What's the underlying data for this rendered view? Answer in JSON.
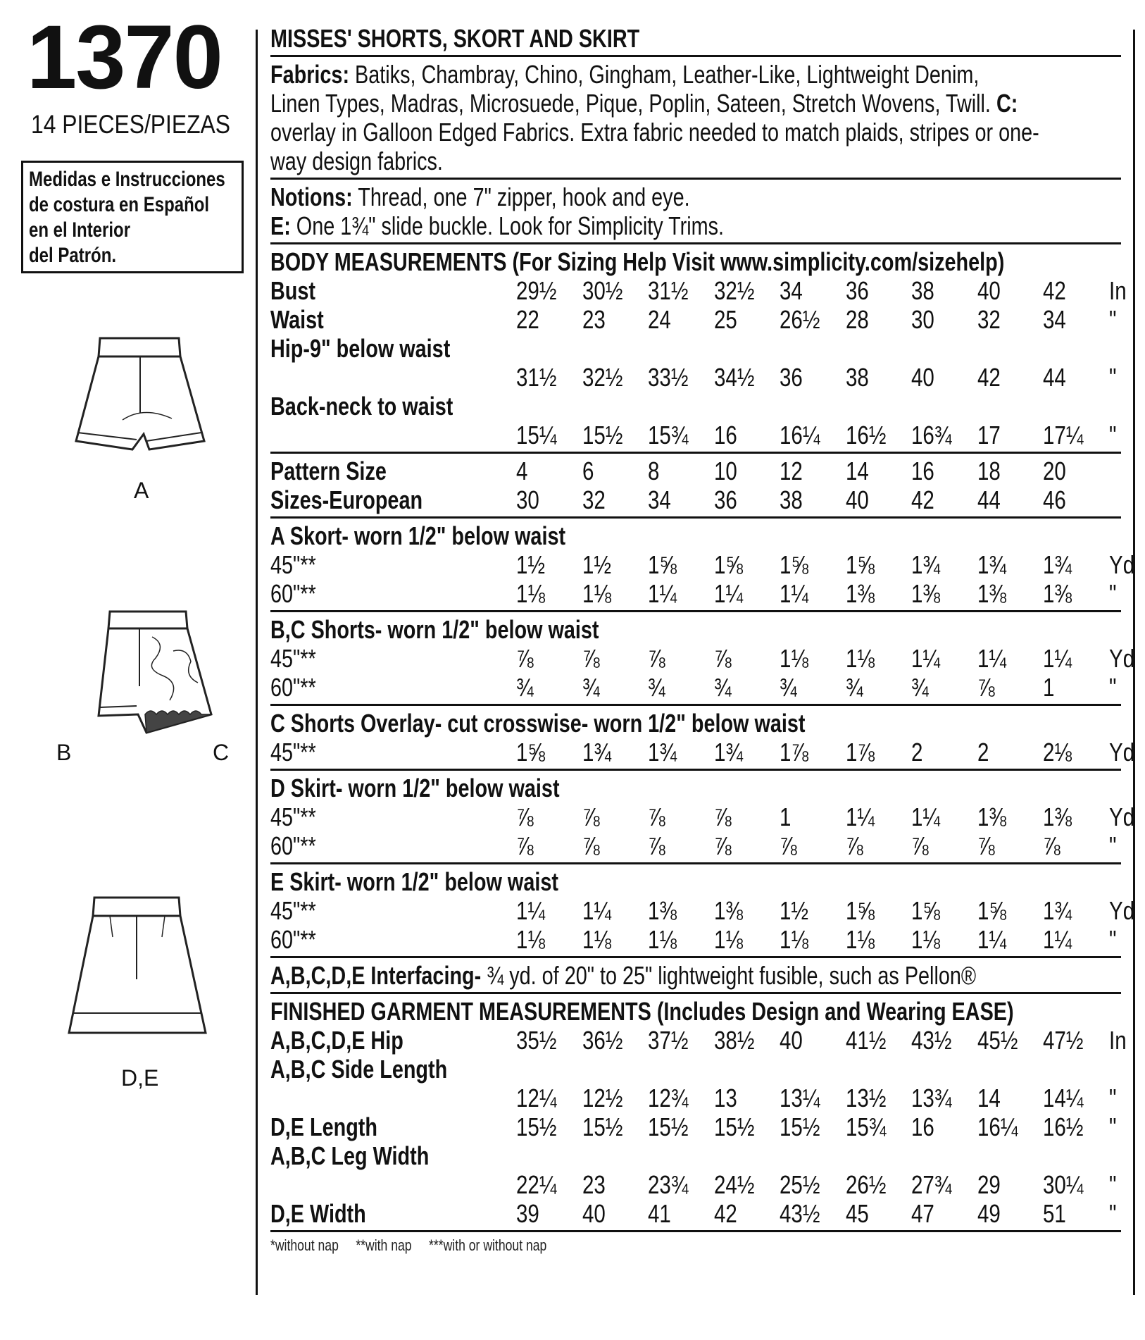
{
  "left": {
    "pattern_number": "1370",
    "pieces": "14 PIECES/PIEZAS",
    "spanish_box": [
      "Medidas e Instrucciones",
      "de costura en Español",
      "en el Interior",
      "del Patrón."
    ],
    "views": [
      {
        "label": "A",
        "icon": "skort-drawing"
      },
      {
        "label_left": "B",
        "label_right": "C",
        "icon": "shorts-with-overlay-drawing"
      },
      {
        "label": "D,E",
        "icon": "skirt-drawing"
      }
    ]
  },
  "title": "MISSES' SHORTS, SKORT AND SKIRT",
  "fabrics": {
    "label": "Fabrics:",
    "lines": [
      " Batiks, Chambray, Chino, Gingham, Leather-Like, Lightweight Denim,",
      "Linen Types, Madras, Microsuede, Pique, Poplin, Sateen, Stretch Wovens, Twill.",
      "overlay in Galloon Edged Fabrics. Extra fabric needed to match plaids, stripes or one-",
      "way design fabrics."
    ],
    "c_label": " C:"
  },
  "notions": {
    "label": "Notions:",
    "line1": " Thread, one 7\" zipper, hook and eye.",
    "e_label": "E:",
    "line2": " One 1¾\" slide buckle. Look for Simplicity Trims."
  },
  "body_measurements": {
    "heading": "BODY MEASUREMENTS (For Sizing Help Visit www.simplicity.com/sizehelp)",
    "rows": [
      {
        "label": "Bust",
        "values": [
          "29½",
          "30½",
          "31½",
          "32½",
          "34",
          "36",
          "38",
          "40",
          "42"
        ],
        "unit": "In"
      },
      {
        "label": "Waist",
        "values": [
          "22",
          "23",
          "24",
          "25",
          "26½",
          "28",
          "30",
          "32",
          "34"
        ],
        "unit": "\""
      },
      {
        "label": "Hip-9\" below waist",
        "values": [],
        "unit": ""
      },
      {
        "label": "",
        "values": [
          "31½",
          "32½",
          "33½",
          "34½",
          "36",
          "38",
          "40",
          "42",
          "44"
        ],
        "unit": "\""
      },
      {
        "label": "Back-neck to waist",
        "values": [],
        "unit": ""
      },
      {
        "label": "",
        "values": [
          "15¼",
          "15½",
          "15¾",
          "16",
          "16¼",
          "16½",
          "16¾",
          "17",
          "17¼"
        ],
        "unit": "\""
      }
    ]
  },
  "sizes": {
    "rows": [
      {
        "label": "Pattern Size",
        "values": [
          "4",
          "6",
          "8",
          "10",
          "12",
          "14",
          "16",
          "18",
          "20"
        ],
        "unit": ""
      },
      {
        "label": "Sizes-European",
        "values": [
          "30",
          "32",
          "34",
          "36",
          "38",
          "40",
          "42",
          "44",
          "46"
        ],
        "unit": ""
      }
    ]
  },
  "yardage": [
    {
      "heading": "A Skort- worn 1/2\" below waist",
      "rows": [
        {
          "label": "45\"**",
          "values": [
            "1½",
            "1½",
            "1⅝",
            "1⅝",
            "1⅝",
            "1⅝",
            "1¾",
            "1¾",
            "1¾"
          ],
          "unit": "Yd"
        },
        {
          "label": "60\"**",
          "values": [
            "1⅛",
            "1⅛",
            "1¼",
            "1¼",
            "1¼",
            "1⅜",
            "1⅜",
            "1⅜",
            "1⅜"
          ],
          "unit": "\""
        }
      ]
    },
    {
      "heading": "B,C Shorts- worn 1/2\" below waist",
      "rows": [
        {
          "label": "45\"**",
          "values": [
            "⅞",
            "⅞",
            "⅞",
            "⅞",
            "1⅛",
            "1⅛",
            "1¼",
            "1¼",
            "1¼"
          ],
          "unit": "Yd"
        },
        {
          "label": "60\"**",
          "values": [
            "¾",
            "¾",
            "¾",
            "¾",
            "¾",
            "¾",
            "¾",
            "⅞",
            "1"
          ],
          "unit": "\""
        }
      ]
    },
    {
      "heading": "C Shorts Overlay- cut crosswise- worn 1/2\" below waist",
      "rows": [
        {
          "label": "45\"**",
          "values": [
            "1⅝",
            "1¾",
            "1¾",
            "1¾",
            "1⅞",
            "1⅞",
            "2",
            "2",
            "2⅛"
          ],
          "unit": "Yd"
        }
      ]
    },
    {
      "heading": "D Skirt- worn 1/2\" below waist",
      "rows": [
        {
          "label": "45\"**",
          "values": [
            "⅞",
            "⅞",
            "⅞",
            "⅞",
            "1",
            "1¼",
            "1¼",
            "1⅜",
            "1⅜"
          ],
          "unit": "Yd"
        },
        {
          "label": "60\"**",
          "values": [
            "⅞",
            "⅞",
            "⅞",
            "⅞",
            "⅞",
            "⅞",
            "⅞",
            "⅞",
            "⅞"
          ],
          "unit": "\""
        }
      ]
    },
    {
      "heading": "E Skirt- worn 1/2\" below waist",
      "rows": [
        {
          "label": "45\"**",
          "values": [
            "1¼",
            "1¼",
            "1⅜",
            "1⅜",
            "1½",
            "1⅝",
            "1⅝",
            "1⅝",
            "1¾"
          ],
          "unit": "Yd"
        },
        {
          "label": "60\"**",
          "values": [
            "1⅛",
            "1⅛",
            "1⅛",
            "1⅛",
            "1⅛",
            "1⅛",
            "1⅛",
            "1¼",
            "1¼"
          ],
          "unit": "\""
        }
      ]
    }
  ],
  "interfacing": {
    "label": "A,B,C,D,E Interfacing-",
    "text": " ¾ yd. of 20\" to 25\" lightweight fusible, such as Pellon®"
  },
  "finished": {
    "heading": "FINISHED GARMENT MEASUREMENTS (Includes Design and Wearing EASE)",
    "rows": [
      {
        "label": "A,B,C,D,E Hip",
        "values": [
          "35½",
          "36½",
          "37½",
          "38½",
          "40",
          "41½",
          "43½",
          "45½",
          "47½"
        ],
        "unit": "In"
      },
      {
        "label": "A,B,C Side Length",
        "values": [],
        "unit": ""
      },
      {
        "label": "",
        "values": [
          "12¼",
          "12½",
          "12¾",
          "13",
          "13¼",
          "13½",
          "13¾",
          "14",
          "14¼"
        ],
        "unit": "\""
      },
      {
        "label": "D,E Length",
        "values": [
          "15½",
          "15½",
          "15½",
          "15½",
          "15½",
          "15¾",
          "16",
          "16¼",
          "16½"
        ],
        "unit": "\""
      },
      {
        "label": "A,B,C Leg Width",
        "values": [],
        "unit": ""
      },
      {
        "label": "",
        "values": [
          "22¼",
          "23",
          "23¾",
          "24½",
          "25½",
          "26½",
          "27¾",
          "29",
          "30¼"
        ],
        "unit": "\""
      },
      {
        "label": "D,E Width",
        "values": [
          "39",
          "40",
          "41",
          "42",
          "43½",
          "45",
          "47",
          "49",
          "51"
        ],
        "unit": "\""
      }
    ]
  },
  "footnotes": [
    "*without nap",
    "**with nap",
    "***with or without nap"
  ]
}
